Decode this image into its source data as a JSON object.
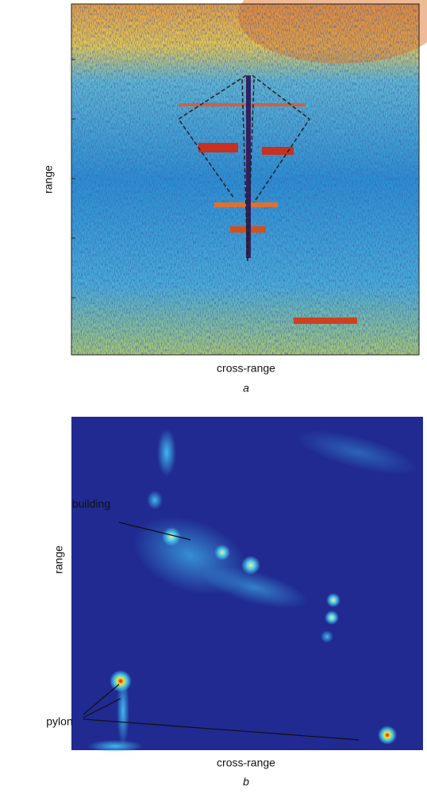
{
  "panels": [
    {
      "ylabel": "range",
      "xlabel": "cross-range",
      "caption": "a"
    },
    {
      "ylabel": "range",
      "xlabel": "cross-range",
      "caption": "b",
      "annotations": [
        "building",
        "pylon"
      ]
    }
  ]
}
